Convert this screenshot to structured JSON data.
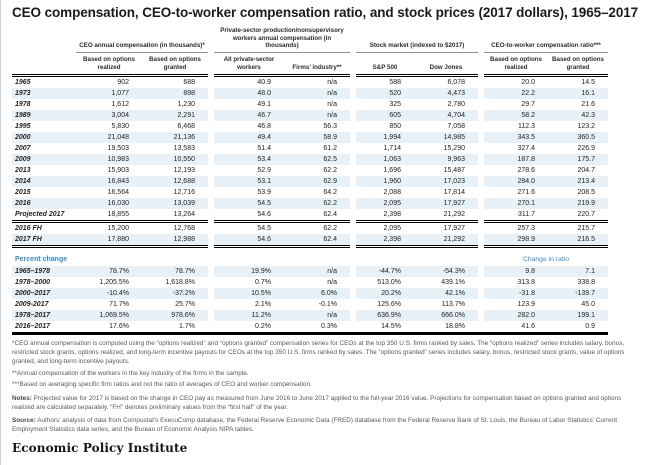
{
  "colors": {
    "accent_blue": "#3a8ac2",
    "stripe": "#e9f1f8",
    "rule_black": "#000000"
  },
  "chart_data": {
    "type": "table",
    "title": "CEO compensation, CEO-to-worker compensation ratio, and stock prices (2017 dollars), 1965–2017",
    "column_groups": [
      {
        "label": "CEO annual compensation (in thousands)*",
        "columns": [
          "Based on options realized",
          "Based on options granted"
        ]
      },
      {
        "label": "Private-sector production/nonsupervisory workers annual compensation (in thousands)",
        "columns": [
          "All private-sector workers",
          "Firms’ industry**"
        ]
      },
      {
        "label": "Stock market (indexed to $2017)",
        "columns": [
          "S&P 500",
          "Dow Jones"
        ]
      },
      {
        "label": "CEO-to-worker compensation ratio***",
        "columns": [
          "Based on options realized",
          "Based on options granted"
        ]
      }
    ],
    "rows": [
      {
        "label": "1965",
        "values": [
          "902",
          "688",
          "40.9",
          "n/a",
          "588",
          "6,078",
          "20.0",
          "14.5"
        ]
      },
      {
        "label": "1973",
        "values": [
          "1,077",
          "898",
          "48.0",
          "n/a",
          "520",
          "4,473",
          "22.2",
          "16.1"
        ]
      },
      {
        "label": "1978",
        "values": [
          "1,612",
          "1,230",
          "49.1",
          "n/a",
          "325",
          "2,780",
          "29.7",
          "21.6"
        ]
      },
      {
        "label": "1989",
        "values": [
          "3,004",
          "2,291",
          "46.7",
          "n/a",
          "605",
          "4,704",
          "58.2",
          "42.3"
        ]
      },
      {
        "label": "1995",
        "values": [
          "5,830",
          "6,468",
          "46.8",
          "56.3",
          "850",
          "7,058",
          "112.3",
          "123.2"
        ]
      },
      {
        "label": "2000",
        "values": [
          "21,048",
          "21,136",
          "49.4",
          "58.9",
          "1,994",
          "14,985",
          "343.5",
          "360.5"
        ]
      },
      {
        "label": "2007",
        "values": [
          "19,503",
          "13,583",
          "51.4",
          "61.2",
          "1,714",
          "15,290",
          "327.4",
          "226.9"
        ]
      },
      {
        "label": "2009",
        "values": [
          "10,983",
          "10,550",
          "53.4",
          "62.5",
          "1,063",
          "9,963",
          "187.8",
          "175.7"
        ]
      },
      {
        "label": "2013",
        "values": [
          "15,903",
          "12,193",
          "52.9",
          "62.2",
          "1,696",
          "15,487",
          "278.6",
          "204.7"
        ]
      },
      {
        "label": "2014",
        "values": [
          "16,843",
          "12,688",
          "53.1",
          "62.9",
          "1,960",
          "17,023",
          "284.0",
          "213.4"
        ]
      },
      {
        "label": "2015",
        "values": [
          "16,564",
          "12,716",
          "53.9",
          "64.2",
          "2,088",
          "17,814",
          "271.6",
          "208.5"
        ]
      },
      {
        "label": "2016",
        "values": [
          "16,030",
          "13,039",
          "54.5",
          "62.2",
          "2,095",
          "17,927",
          "270.1",
          "219.9"
        ]
      },
      {
        "label": "Projected 2017",
        "values": [
          "18,855",
          "13,264",
          "54.6",
          "62.4",
          "2,398",
          "21,292",
          "311.7",
          "220.7"
        ]
      }
    ],
    "fh_rows": [
      {
        "label": "2016 FH",
        "values": [
          "15,200",
          "12,768",
          "54.5",
          "62.2",
          "2,095",
          "17,927",
          "257.3",
          "215.7"
        ]
      },
      {
        "label": "2017 FH",
        "values": [
          "17,880",
          "12,988",
          "54.6",
          "62.4",
          "2,398",
          "21,292",
          "298.9",
          "216.5"
        ]
      }
    ],
    "percent_change": {
      "label": "Percent change",
      "change_in_ratio_label": "Change in ratio",
      "rows": [
        {
          "label": "1965–1978",
          "values": [
            "78.7%",
            "78.7%",
            "19.9%",
            "n/a",
            "-44.7%",
            "-54.3%",
            "9.8",
            "7.1"
          ]
        },
        {
          "label": "1978–2000",
          "values": [
            "1,205.5%",
            "1,618.8%",
            "0.7%",
            "n/a",
            "513.0%",
            "439.1%",
            "313.8",
            "338.8"
          ]
        },
        {
          "label": "2000–2017",
          "values": [
            "-10.4%",
            "-37.2%",
            "10.5%",
            "6.0%",
            "20.2%",
            "42.1%",
            "-31.8",
            "-139.7"
          ]
        },
        {
          "label": "2009-2017",
          "values": [
            "71.7%",
            "25.7%",
            "2.1%",
            "-0.1%",
            "125.6%",
            "113.7%",
            "123.9",
            "45.0"
          ]
        },
        {
          "label": "1978–2017",
          "values": [
            "1,069.5%",
            "978.6%",
            "11.2%",
            "n/a",
            "636.9%",
            "666.0%",
            "282.0",
            "199.1"
          ]
        },
        {
          "label": "2016–2017",
          "values": [
            "17.6%",
            "1.7%",
            "0.2%",
            "0.3%",
            "14.5%",
            "18.8%",
            "41.6",
            "0.9"
          ]
        }
      ]
    }
  },
  "footnotes": [
    "*CEO annual compensation is computed using the “options realized” and “options granted” compensation series for CEOs at the top 350 U.S. firms ranked by sales. The “options realized” series includes salary, bonus, restricted stock grants, options realized, and long-term incentive payouts for CEOs at the top 350 U.S. firms ranked by sales. The “options granted” series includes salary, bonus, restricted stock grants, value of options granted, and long-term incentive payouts.",
    "**Annual compensation of the workers in the key industry of the firms in the sample.",
    "***Based on averaging specific firm ratios and not the ratio of averages of CEO and worker compensation."
  ],
  "notes": {
    "label": "Notes:",
    "text": " Projected value for 2017 is based on the change in CEO pay as measured from June 2016 to June 2017 applied to the full-year 2016 value. Projections for compensation based on options granted and options realized are calculated separately. “FH” denotes preliminary values from the “first half” of the year."
  },
  "source": {
    "label": "Source:",
    "text": " Authors’ analysis of data from Compustat’s ExecuComp database, the Federal Reserve Economic Data (FRED) database from the Federal Reserve Bank of St. Louis, the Bureau of Labor Statistics’ Current Employment Statistics data series, and the Bureau of Economic Analysis NIPA tables."
  },
  "brand": "Economic Policy Institute"
}
